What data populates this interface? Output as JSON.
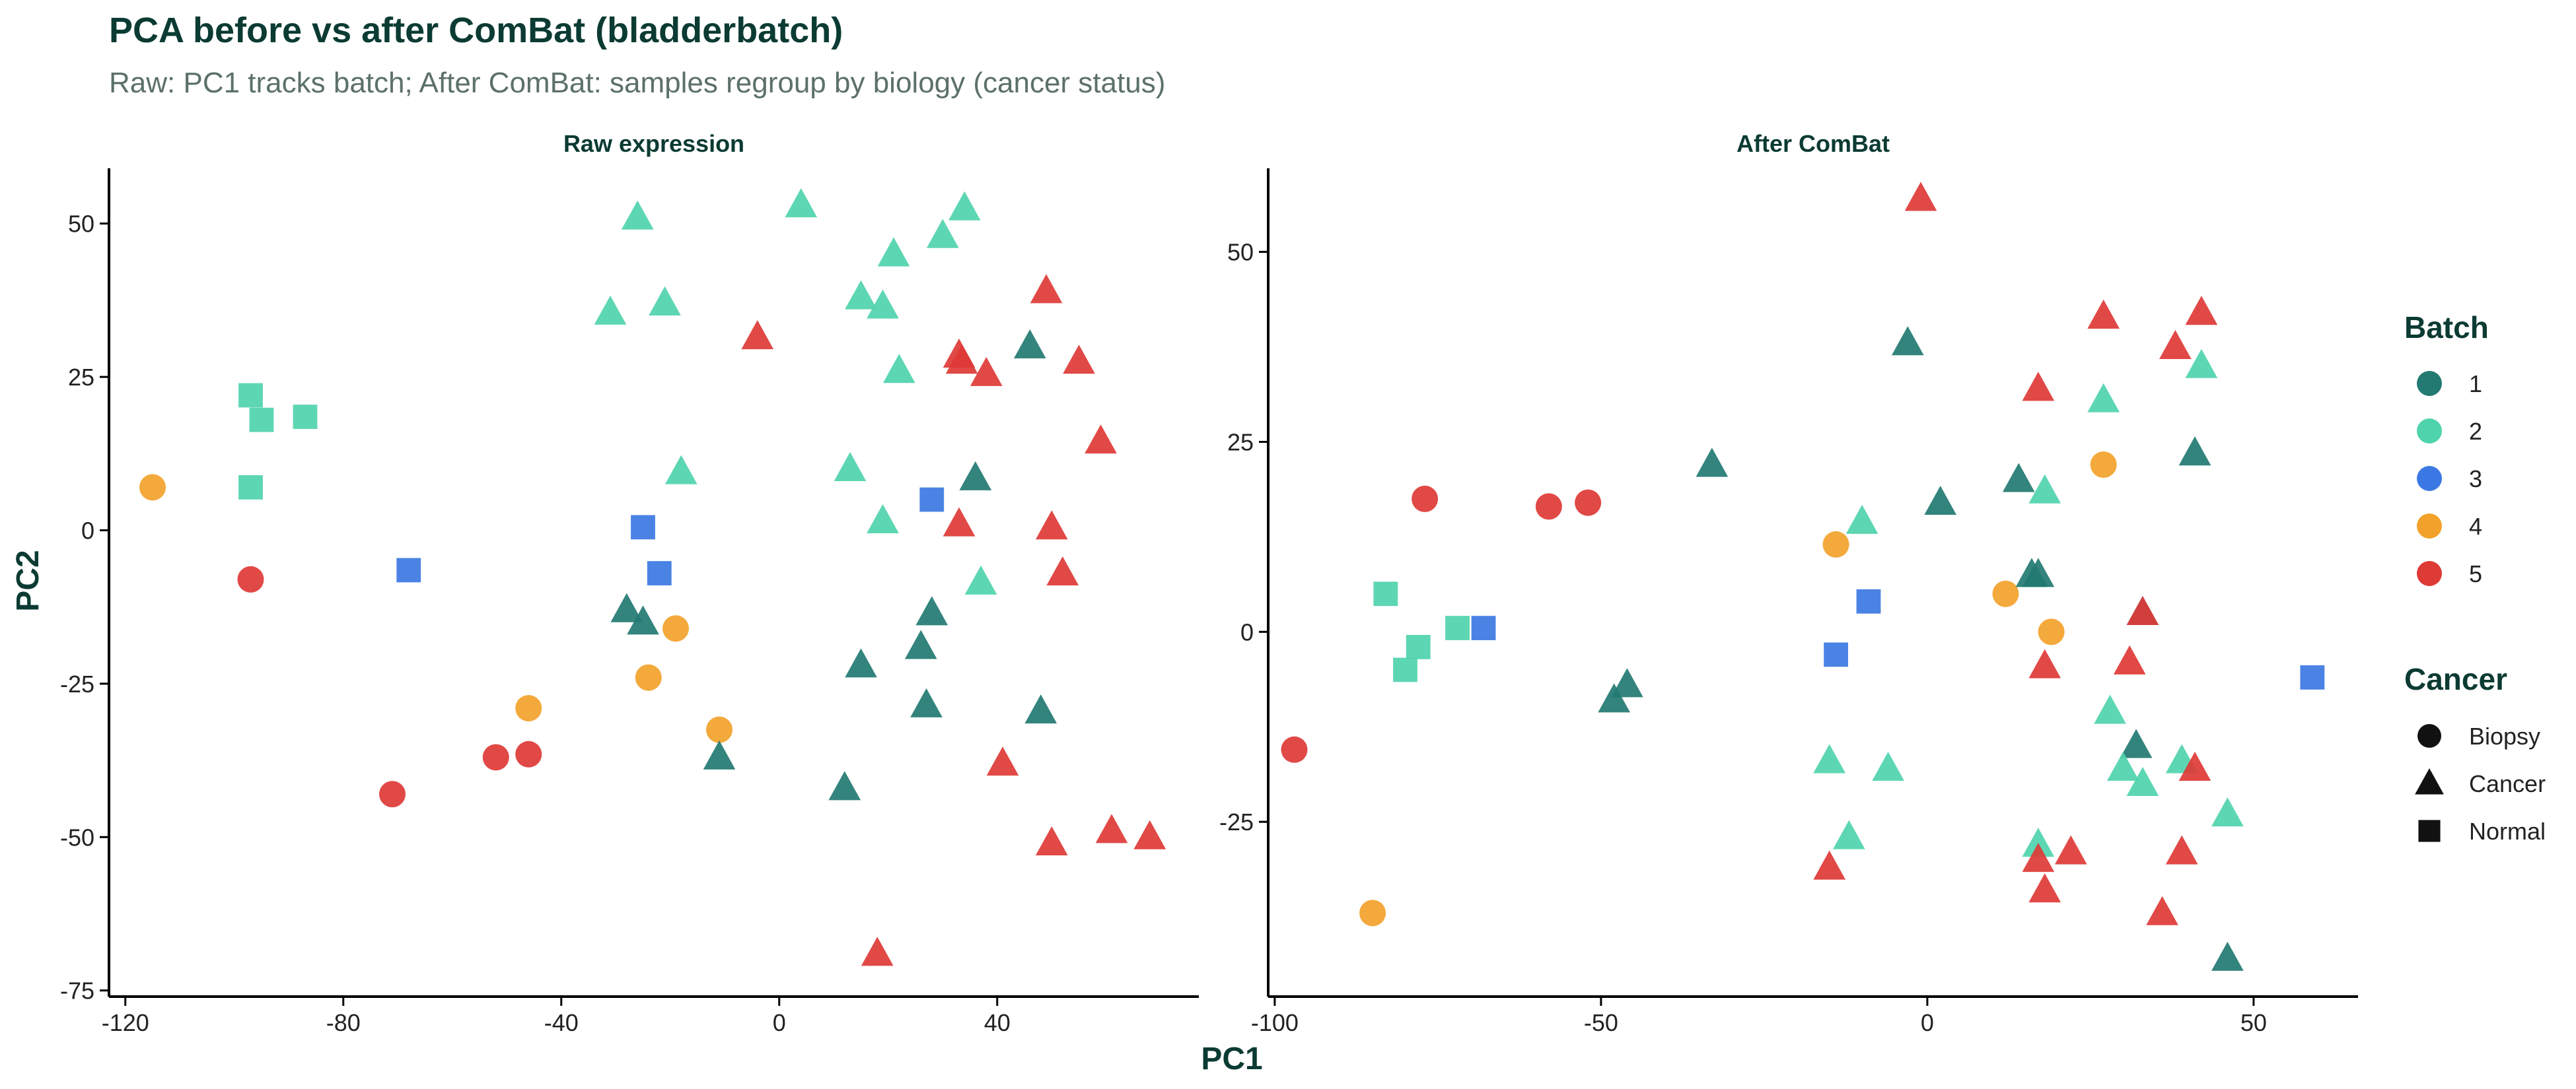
{
  "chart_data": {
    "type": "scatter",
    "title": "PCA before vs after ComBat (bladderbatch)",
    "subtitle": "Raw: PC1 tracks batch; After ComBat: samples regroup by biology (cancer status)",
    "xlabel": "PC1",
    "ylabel": "PC2",
    "legend": {
      "position": "right",
      "batch_title": "Batch",
      "batch": [
        {
          "label": "1",
          "color": "#227a72"
        },
        {
          "label": "2",
          "color": "#4fd3ad"
        },
        {
          "label": "3",
          "color": "#3c78e3"
        },
        {
          "label": "4",
          "color": "#f2a22a"
        },
        {
          "label": "5",
          "color": "#de3a36"
        }
      ],
      "cancer_title": "Cancer",
      "cancer": [
        {
          "label": "Biopsy",
          "shape": "circle"
        },
        {
          "label": "Cancer",
          "shape": "triangle"
        },
        {
          "label": "Normal",
          "shape": "square"
        }
      ]
    },
    "panels": [
      {
        "title": "Raw expression",
        "xlim": [
          -123,
          77
        ],
        "ylim": [
          -76,
          59
        ],
        "xticks": [
          -120,
          -80,
          -40,
          0,
          40
        ],
        "yticks": [
          50,
          25,
          0,
          -25,
          -50,
          -75
        ],
        "points": [
          {
            "x": -115,
            "y": 7,
            "b": 4,
            "s": "circle"
          },
          {
            "x": -97,
            "y": -8,
            "b": 5,
            "s": "circle"
          },
          {
            "x": -97,
            "y": 22,
            "b": 2,
            "s": "square"
          },
          {
            "x": -95,
            "y": 18,
            "b": 2,
            "s": "square"
          },
          {
            "x": -87,
            "y": 18.5,
            "b": 2,
            "s": "square"
          },
          {
            "x": -97,
            "y": 7,
            "b": 2,
            "s": "square"
          },
          {
            "x": -68,
            "y": -6.5,
            "b": 3,
            "s": "square"
          },
          {
            "x": -71,
            "y": -43,
            "b": 5,
            "s": "circle"
          },
          {
            "x": -52,
            "y": -37,
            "b": 5,
            "s": "circle"
          },
          {
            "x": -46,
            "y": -36.5,
            "b": 5,
            "s": "circle"
          },
          {
            "x": -46,
            "y": -29,
            "b": 4,
            "s": "circle"
          },
          {
            "x": -24,
            "y": -24,
            "b": 4,
            "s": "circle"
          },
          {
            "x": -19,
            "y": -16,
            "b": 4,
            "s": "circle"
          },
          {
            "x": -11,
            "y": -32.5,
            "b": 4,
            "s": "circle"
          },
          {
            "x": -25,
            "y": 0.5,
            "b": 3,
            "s": "square"
          },
          {
            "x": -22,
            "y": -7,
            "b": 3,
            "s": "square"
          },
          {
            "x": 28,
            "y": 5,
            "b": 3,
            "s": "square"
          },
          {
            "x": -28,
            "y": -13,
            "b": 1,
            "s": "triangle"
          },
          {
            "x": -25,
            "y": -15,
            "b": 1,
            "s": "triangle"
          },
          {
            "x": -11,
            "y": -37,
            "b": 1,
            "s": "triangle"
          },
          {
            "x": 12,
            "y": -42,
            "b": 1,
            "s": "triangle"
          },
          {
            "x": 15,
            "y": -22,
            "b": 1,
            "s": "triangle"
          },
          {
            "x": 26,
            "y": -19,
            "b": 1,
            "s": "triangle"
          },
          {
            "x": 27,
            "y": -28.5,
            "b": 1,
            "s": "triangle"
          },
          {
            "x": 28,
            "y": -13.5,
            "b": 1,
            "s": "triangle"
          },
          {
            "x": 36,
            "y": 8.5,
            "b": 1,
            "s": "triangle"
          },
          {
            "x": 46,
            "y": 30,
            "b": 1,
            "s": "triangle"
          },
          {
            "x": 48,
            "y": -29.5,
            "b": 1,
            "s": "triangle"
          },
          {
            "x": -26,
            "y": 51,
            "b": 2,
            "s": "triangle"
          },
          {
            "x": -31,
            "y": 35.5,
            "b": 2,
            "s": "triangle"
          },
          {
            "x": -21,
            "y": 37,
            "b": 2,
            "s": "triangle"
          },
          {
            "x": -18,
            "y": 9.5,
            "b": 2,
            "s": "triangle"
          },
          {
            "x": 4,
            "y": 53,
            "b": 2,
            "s": "triangle"
          },
          {
            "x": 13,
            "y": 10,
            "b": 2,
            "s": "triangle"
          },
          {
            "x": 15,
            "y": 38,
            "b": 2,
            "s": "triangle"
          },
          {
            "x": 19,
            "y": 36.5,
            "b": 2,
            "s": "triangle"
          },
          {
            "x": 19,
            "y": 1.5,
            "b": 2,
            "s": "triangle"
          },
          {
            "x": 21,
            "y": 45,
            "b": 2,
            "s": "triangle"
          },
          {
            "x": 22,
            "y": 26,
            "b": 2,
            "s": "triangle"
          },
          {
            "x": 30,
            "y": 48,
            "b": 2,
            "s": "triangle"
          },
          {
            "x": 34,
            "y": 52.5,
            "b": 2,
            "s": "triangle"
          },
          {
            "x": 37,
            "y": -8.5,
            "b": 2,
            "s": "triangle"
          },
          {
            "x": -4,
            "y": 31.5,
            "b": 5,
            "s": "triangle"
          },
          {
            "x": 18,
            "y": -69,
            "b": 5,
            "s": "triangle"
          },
          {
            "x": 33,
            "y": 1,
            "b": 5,
            "s": "triangle"
          },
          {
            "x": 33,
            "y": 28.5,
            "b": 5,
            "s": "triangle"
          },
          {
            "x": 33.5,
            "y": 27.5,
            "b": 5,
            "s": "triangle"
          },
          {
            "x": 38,
            "y": 25.5,
            "b": 5,
            "s": "triangle"
          },
          {
            "x": 41,
            "y": -38,
            "b": 5,
            "s": "triangle"
          },
          {
            "x": 49,
            "y": 39,
            "b": 5,
            "s": "triangle"
          },
          {
            "x": 50,
            "y": 0.5,
            "b": 5,
            "s": "triangle"
          },
          {
            "x": 50,
            "y": -51,
            "b": 5,
            "s": "triangle"
          },
          {
            "x": 52,
            "y": -7,
            "b": 5,
            "s": "triangle"
          },
          {
            "x": 55,
            "y": 27.5,
            "b": 5,
            "s": "triangle"
          },
          {
            "x": 59,
            "y": 14.5,
            "b": 5,
            "s": "triangle"
          },
          {
            "x": 61,
            "y": -49,
            "b": 5,
            "s": "triangle"
          },
          {
            "x": 68,
            "y": -50,
            "b": 5,
            "s": "triangle"
          }
        ]
      },
      {
        "title": "After ComBat",
        "xlim": [
          -101,
          66
        ],
        "ylim": [
          -48,
          61
        ],
        "xticks": [
          -100,
          -50,
          0,
          50
        ],
        "yticks": [
          50,
          25,
          0,
          -25
        ],
        "points": [
          {
            "x": -97,
            "y": -15.5,
            "b": 5,
            "s": "circle"
          },
          {
            "x": -77,
            "y": 17.5,
            "b": 5,
            "s": "circle"
          },
          {
            "x": -58,
            "y": 16.5,
            "b": 5,
            "s": "circle"
          },
          {
            "x": -52,
            "y": 17,
            "b": 5,
            "s": "circle"
          },
          {
            "x": -85,
            "y": -37,
            "b": 4,
            "s": "circle"
          },
          {
            "x": -14,
            "y": 11.5,
            "b": 4,
            "s": "circle"
          },
          {
            "x": 12,
            "y": 5,
            "b": 4,
            "s": "circle"
          },
          {
            "x": 19,
            "y": 0,
            "b": 4,
            "s": "circle"
          },
          {
            "x": 27,
            "y": 22,
            "b": 4,
            "s": "circle"
          },
          {
            "x": -83,
            "y": 5,
            "b": 2,
            "s": "square"
          },
          {
            "x": -80,
            "y": -5,
            "b": 2,
            "s": "square"
          },
          {
            "x": -78,
            "y": -2,
            "b": 2,
            "s": "square"
          },
          {
            "x": -72,
            "y": 0.5,
            "b": 2,
            "s": "square"
          },
          {
            "x": -68,
            "y": 0.5,
            "b": 3,
            "s": "square"
          },
          {
            "x": -14,
            "y": -3,
            "b": 3,
            "s": "square"
          },
          {
            "x": -9,
            "y": 4,
            "b": 3,
            "s": "square"
          },
          {
            "x": 59,
            "y": -6,
            "b": 3,
            "s": "square"
          },
          {
            "x": -48,
            "y": -9,
            "b": 1,
            "s": "triangle"
          },
          {
            "x": -46,
            "y": -7,
            "b": 1,
            "s": "triangle"
          },
          {
            "x": -33,
            "y": 22,
            "b": 1,
            "s": "triangle"
          },
          {
            "x": -3,
            "y": 38,
            "b": 1,
            "s": "triangle"
          },
          {
            "x": 2,
            "y": 17,
            "b": 1,
            "s": "triangle"
          },
          {
            "x": 14,
            "y": 20,
            "b": 1,
            "s": "triangle"
          },
          {
            "x": 16,
            "y": 7.5,
            "b": 1,
            "s": "triangle"
          },
          {
            "x": 17,
            "y": 7.5,
            "b": 1,
            "s": "triangle"
          },
          {
            "x": 32,
            "y": -15,
            "b": 1,
            "s": "triangle"
          },
          {
            "x": 33,
            "y": 2.5,
            "b": 1,
            "s": "triangle"
          },
          {
            "x": 41,
            "y": 23.5,
            "b": 1,
            "s": "triangle"
          },
          {
            "x": 46,
            "y": -43,
            "b": 1,
            "s": "triangle"
          },
          {
            "x": -15,
            "y": -17,
            "b": 2,
            "s": "triangle"
          },
          {
            "x": -12,
            "y": -27,
            "b": 2,
            "s": "triangle"
          },
          {
            "x": -10,
            "y": 14.5,
            "b": 2,
            "s": "triangle"
          },
          {
            "x": -6,
            "y": -18,
            "b": 2,
            "s": "triangle"
          },
          {
            "x": 17,
            "y": -28,
            "b": 2,
            "s": "triangle"
          },
          {
            "x": 18,
            "y": 18.5,
            "b": 2,
            "s": "triangle"
          },
          {
            "x": 27,
            "y": 30.5,
            "b": 2,
            "s": "triangle"
          },
          {
            "x": 28,
            "y": -10.5,
            "b": 2,
            "s": "triangle"
          },
          {
            "x": 30,
            "y": -18,
            "b": 2,
            "s": "triangle"
          },
          {
            "x": 33,
            "y": -20,
            "b": 2,
            "s": "triangle"
          },
          {
            "x": 39,
            "y": -17,
            "b": 2,
            "s": "triangle"
          },
          {
            "x": 42,
            "y": 35,
            "b": 2,
            "s": "triangle"
          },
          {
            "x": 46,
            "y": -24,
            "b": 2,
            "s": "triangle"
          },
          {
            "x": -1,
            "y": 57,
            "b": 5,
            "s": "triangle"
          },
          {
            "x": -15,
            "y": -31,
            "b": 5,
            "s": "triangle"
          },
          {
            "x": 17,
            "y": 32,
            "b": 5,
            "s": "triangle"
          },
          {
            "x": 17,
            "y": -30,
            "b": 5,
            "s": "triangle"
          },
          {
            "x": 18,
            "y": -34,
            "b": 5,
            "s": "triangle"
          },
          {
            "x": 18,
            "y": -4.5,
            "b": 5,
            "s": "triangle"
          },
          {
            "x": 22,
            "y": -29,
            "b": 5,
            "s": "triangle"
          },
          {
            "x": 27,
            "y": 41.5,
            "b": 5,
            "s": "triangle"
          },
          {
            "x": 31,
            "y": -4,
            "b": 5,
            "s": "triangle"
          },
          {
            "x": 33,
            "y": 2.5,
            "b": 5,
            "s": "triangle"
          },
          {
            "x": 36,
            "y": -37,
            "b": 5,
            "s": "triangle"
          },
          {
            "x": 38,
            "y": 37.5,
            "b": 5,
            "s": "triangle"
          },
          {
            "x": 39,
            "y": -29,
            "b": 5,
            "s": "triangle"
          },
          {
            "x": 41,
            "y": -18,
            "b": 5,
            "s": "triangle"
          },
          {
            "x": 42,
            "y": 42,
            "b": 5,
            "s": "triangle"
          }
        ]
      }
    ]
  }
}
